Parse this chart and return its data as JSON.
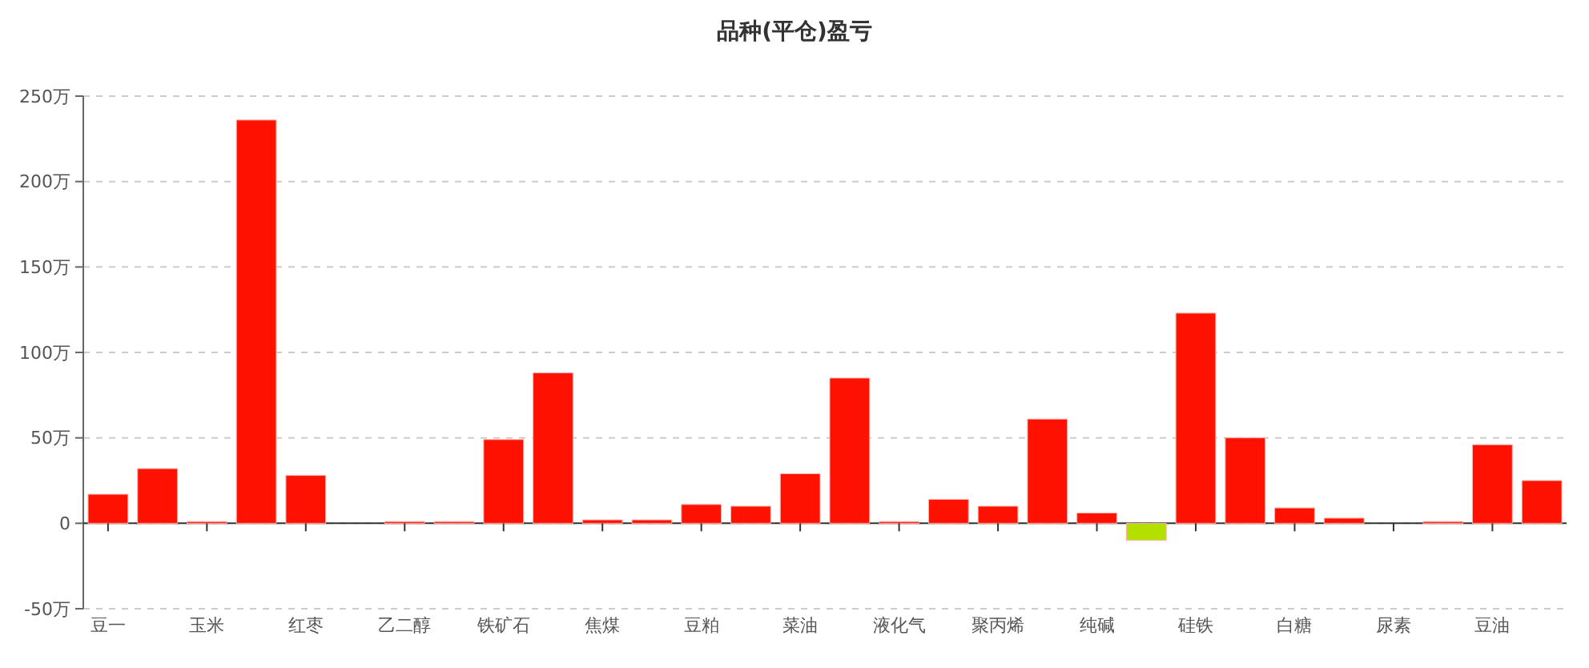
{
  "chart_data": {
    "type": "bar",
    "title": "品种(平仓)盈亏",
    "categories": [
      "豆一",
      null,
      "玉米",
      null,
      "红枣",
      null,
      "乙二醇",
      null,
      "铁矿石",
      null,
      "焦煤",
      null,
      "豆粕",
      null,
      "菜油",
      null,
      "液化气",
      null,
      "聚丙烯",
      null,
      "纯碱",
      null,
      "硅铁",
      null,
      "白糖",
      null,
      "尿素",
      null,
      "豆油",
      null
    ],
    "values": [
      17,
      32,
      1,
      236,
      28,
      0,
      1,
      1,
      49,
      88,
      2,
      2,
      11,
      10,
      29,
      85,
      1,
      14,
      10,
      61,
      6,
      -10,
      123,
      50,
      9,
      3,
      0,
      1,
      46,
      25
    ],
    "colors": [
      "#ff1100",
      "#ff1100",
      "#ff1100",
      "#ff1100",
      "#ff1100",
      "#ff1100",
      "#ff1100",
      "#ff1100",
      "#ff1100",
      "#ff1100",
      "#ff1100",
      "#ff1100",
      "#ff1100",
      "#ff1100",
      "#ff1100",
      "#ff1100",
      "#ff1100",
      "#ff1100",
      "#ff1100",
      "#ff1100",
      "#ff1100",
      "#b3e000",
      "#ff1100",
      "#ff1100",
      "#ff1100",
      "#ff1100",
      "#ff1100",
      "#ff1100",
      "#ff1100",
      "#ff1100"
    ],
    "ylim": [
      -50,
      250
    ],
    "yticks": [
      {
        "value": -50,
        "label": "-50万"
      },
      0,
      {
        "value": 50,
        "label": "50万"
      },
      {
        "value": 100,
        "label": "100万"
      },
      {
        "value": 150,
        "label": "150万"
      },
      {
        "value": 200,
        "label": "200万"
      },
      {
        "value": 250,
        "label": "250万"
      }
    ],
    "grid": "y"
  }
}
